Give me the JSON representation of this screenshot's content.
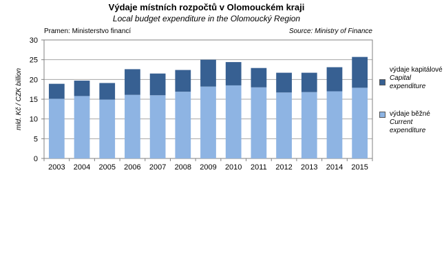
{
  "title": "Výdaje místních rozpočtů v Olomouckém  kraji",
  "subtitle": "Local budget expenditure  in the Olomoucký Region",
  "source_cz": "Pramen: Ministerstvo financí",
  "source_en": "Source: Ministry of Finance",
  "chart_data": {
    "type": "bar",
    "stacked": true,
    "categories": [
      "2003",
      "2004",
      "2005",
      "2006",
      "2007",
      "2008",
      "2009",
      "2010",
      "2011",
      "2012",
      "2013",
      "2014",
      "2015"
    ],
    "series": [
      {
        "name_cz": "výdaje běžné",
        "name_en": "Current expenditure",
        "color": "#8eb4e3",
        "values": [
          15.1,
          15.8,
          14.9,
          16.1,
          16.0,
          16.9,
          18.2,
          18.5,
          18.0,
          16.7,
          16.8,
          17.0,
          17.9
        ]
      },
      {
        "name_cz": "výdaje kapitálové",
        "name_en": "Capital expenditure",
        "color": "#376092",
        "values": [
          3.8,
          3.9,
          4.2,
          6.5,
          5.5,
          5.5,
          6.8,
          5.9,
          4.9,
          5.0,
          4.9,
          6.1,
          7.8
        ]
      }
    ],
    "ylabel": "mld. Kč / CZK billion",
    "ylim": [
      0,
      30
    ],
    "yticks": [
      0,
      5,
      10,
      15,
      20,
      25,
      30
    ],
    "grid": true,
    "legend": "right"
  }
}
